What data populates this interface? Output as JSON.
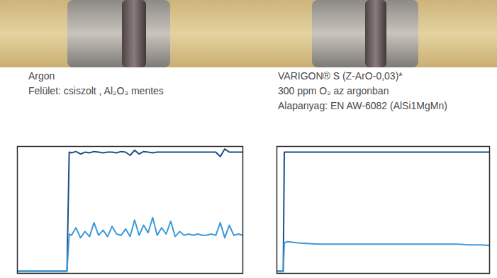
{
  "chart_data": [
    {
      "type": "line",
      "title": "Argon",
      "subtitle": [
        "Felület: csiszolt , Al₂O₃ mentes"
      ],
      "x": [
        0,
        22,
        23,
        24,
        26,
        28,
        30,
        32,
        34,
        36,
        38,
        40,
        42,
        44,
        46,
        48,
        50,
        52,
        54,
        56,
        58,
        60,
        62,
        64,
        66,
        68,
        70,
        72,
        74,
        76,
        78,
        80,
        82,
        84,
        86,
        88,
        90,
        92,
        94,
        96,
        98,
        100
      ],
      "series": [
        {
          "color": "#1d4f8a",
          "values": [
            1.7,
            1.7,
            95.5,
            95,
            96,
            94,
            95.5,
            95,
            96,
            95.5,
            95,
            95.5,
            95.5,
            95,
            96,
            95.5,
            93,
            97,
            94,
            96,
            95.5,
            95,
            95.5,
            95.5,
            95.5,
            95.5,
            95.5,
            95.5,
            95.5,
            95.5,
            95.5,
            95.5,
            95.5,
            95.5,
            95.5,
            95.5,
            92,
            98,
            95.5,
            95.5,
            95.5,
            95.5
          ]
        },
        {
          "color": "#3b9ad8",
          "values": [
            1.7,
            1.7,
            31,
            30,
            36,
            28,
            33,
            29,
            40,
            30,
            34,
            29,
            37,
            31,
            30,
            35,
            29,
            42,
            30,
            38,
            32,
            44,
            30,
            36,
            31,
            41,
            29,
            33,
            30,
            31,
            30,
            31,
            30,
            30,
            31,
            30,
            40,
            28,
            38,
            30,
            31,
            30
          ]
        }
      ],
      "xlim": [
        0,
        100
      ],
      "ylim": [
        0,
        100
      ],
      "tick_labels": false,
      "grid": false
    },
    {
      "type": "line",
      "title": "VARIGON® S (Z-ArO-0,03)*",
      "subtitle": [
        "300 ppm O₂ az argonban",
        "Alapanyag: EN AW-6082 (AlSi1MgMn)"
      ],
      "x": [
        0,
        3,
        3.5,
        5,
        10,
        15,
        20,
        25,
        30,
        35,
        40,
        45,
        50,
        55,
        60,
        65,
        70,
        75,
        80,
        85,
        90,
        95,
        100
      ],
      "series": [
        {
          "color": "#1d4f8a",
          "values": [
            1.7,
            1.7,
            95.5,
            95.5,
            95.5,
            95.5,
            95.5,
            95.5,
            95.5,
            95.5,
            95.5,
            95.5,
            95.5,
            95.5,
            95.5,
            95.5,
            95.5,
            95.5,
            95.5,
            95.5,
            95.5,
            95.5,
            95.5
          ]
        },
        {
          "color": "#3b9ad8",
          "values": [
            1.7,
            1.7,
            24,
            25,
            24,
            23.5,
            23,
            23,
            23,
            23,
            23,
            23,
            23,
            23,
            23,
            23,
            23,
            23,
            23,
            23,
            22.5,
            22.5,
            22
          ]
        }
      ],
      "xlim": [
        0,
        100
      ],
      "ylim": [
        0,
        100
      ],
      "tick_labels": false,
      "grid": false
    }
  ]
}
